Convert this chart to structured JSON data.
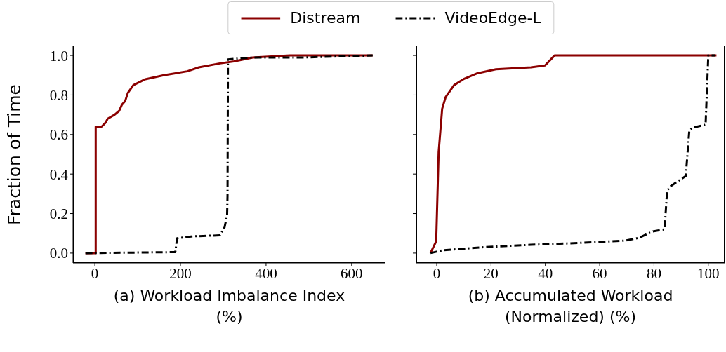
{
  "chart_data": [
    {
      "type": "line",
      "xlabel": "(a) Workload Imbalance Index (%)",
      "ylabel": "Fraction of Time",
      "xlim": [
        -51,
        679
      ],
      "ylim": [
        -0.05,
        1.05
      ],
      "xticks": [
        0,
        200,
        400,
        600
      ],
      "yticks": [
        {
          "value": 0,
          "label": "0.0"
        },
        {
          "value": 0.2,
          "label": "0.2"
        },
        {
          "value": 0.4,
          "label": "0.4"
        },
        {
          "value": 0.6,
          "label": "0.6"
        },
        {
          "value": 0.8,
          "label": "0.8"
        },
        {
          "value": 1,
          "label": "1.0"
        }
      ],
      "legend": "top",
      "marker": "none",
      "series": [
        {
          "name": "Distream",
          "color": "#8b0000",
          "line_style": "solid",
          "x": [
            -22,
            2,
            2,
            16,
            25,
            30,
            46,
            57,
            63,
            71,
            77,
            90,
            118,
            161,
            216,
            243,
            292,
            325,
            369,
            456,
            649
          ],
          "values": [
            0,
            0,
            0.64,
            0.64,
            0.66,
            0.68,
            0.7,
            0.72,
            0.75,
            0.77,
            0.81,
            0.85,
            0.88,
            0.9,
            0.92,
            0.94,
            0.96,
            0.97,
            0.99,
            1,
            1
          ]
        },
        {
          "name": "VideoEdge-L",
          "color": "#000000",
          "line_style": "dashed",
          "x": [
            -22,
            188,
            192,
            230,
            292,
            303,
            309,
            310,
            311,
            369,
            490,
            649
          ],
          "values": [
            0,
            0.005,
            0.075,
            0.085,
            0.09,
            0.13,
            0.19,
            0.29,
            0.98,
            0.99,
            0.99,
            1
          ]
        }
      ]
    },
    {
      "type": "line",
      "xlabel": "(b) Accumulated Workload (Normalized) (%)",
      "xlim": [
        -7.5,
        106
      ],
      "ylim": [
        -0.05,
        1.05
      ],
      "xticks": [
        0,
        20,
        40,
        60,
        80,
        100
      ],
      "yticks": [
        0,
        0.2,
        0.4,
        0.6,
        0.8,
        1
      ],
      "tick_labels": "x",
      "marker": "none",
      "series": [
        {
          "color": "#8b0000",
          "line_style": "solid",
          "x": [
            -2.3,
            -0.2,
            0.7,
            2,
            3.3,
            6.4,
            9.8,
            15,
            21.8,
            34.7,
            39.9,
            43.4,
            103
          ],
          "values": [
            0,
            0.06,
            0.51,
            0.73,
            0.79,
            0.85,
            0.88,
            0.91,
            0.93,
            0.94,
            0.95,
            1,
            1
          ]
        },
        {
          "color": "#000000",
          "line_style": "dashed",
          "x": [
            -2.3,
            2,
            17.5,
            34.7,
            51.9,
            69.2,
            74.4,
            79.6,
            83.9,
            84.8,
            85.7,
            91.7,
            93,
            94.3,
            99,
            100,
            102.4
          ],
          "values": [
            0,
            0.014,
            0.03,
            0.042,
            0.051,
            0.063,
            0.077,
            0.11,
            0.12,
            0.31,
            0.335,
            0.39,
            0.62,
            0.635,
            0.65,
            1,
            1
          ]
        }
      ]
    }
  ]
}
